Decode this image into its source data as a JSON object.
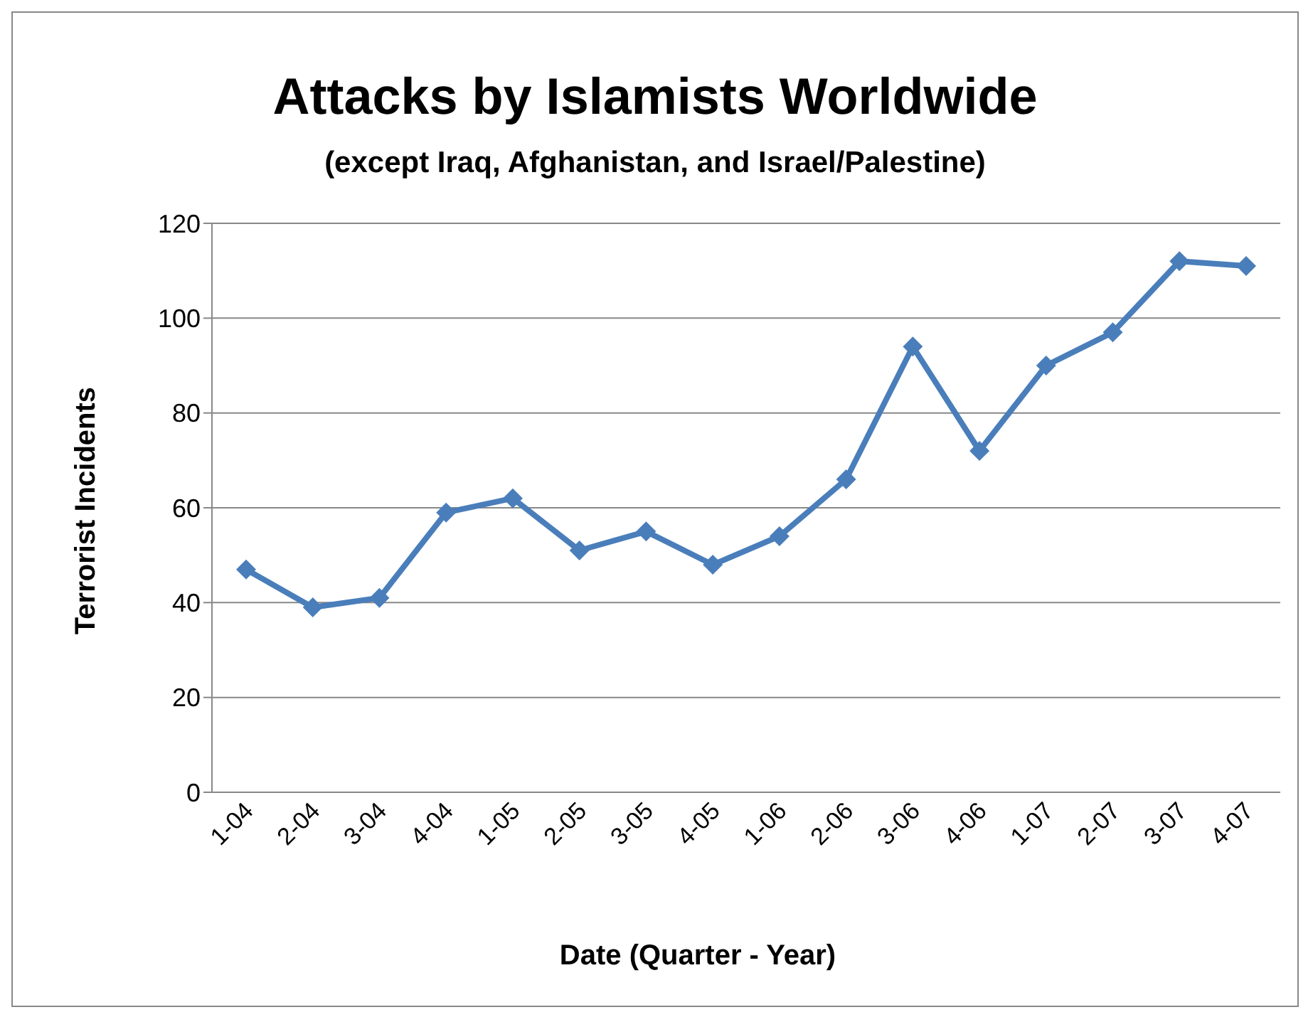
{
  "chart_data": {
    "type": "line",
    "title": "Attacks by Islamists Worldwide",
    "subtitle": "(except Iraq, Afghanistan, and Israel/Palestine)",
    "xlabel": "Date (Quarter - Year)",
    "ylabel": "Terrorist Incidents",
    "categories": [
      "1-04",
      "2-04",
      "3-04",
      "4-04",
      "1-05",
      "2-05",
      "3-05",
      "4-05",
      "1-06",
      "2-06",
      "3-06",
      "4-06",
      "1-07",
      "2-07",
      "3-07",
      "4-07"
    ],
    "series": [
      {
        "color": "#4a7ebb",
        "values": [
          47,
          39,
          41,
          59,
          62,
          51,
          55,
          48,
          54,
          66,
          94,
          72,
          90,
          97,
          112,
          111
        ]
      }
    ],
    "ylim": [
      0,
      120
    ],
    "yticks": [
      0,
      20,
      40,
      60,
      80,
      100,
      120
    ],
    "grid": "y",
    "legend": false,
    "marker": "diamond",
    "line_style": "solid"
  }
}
